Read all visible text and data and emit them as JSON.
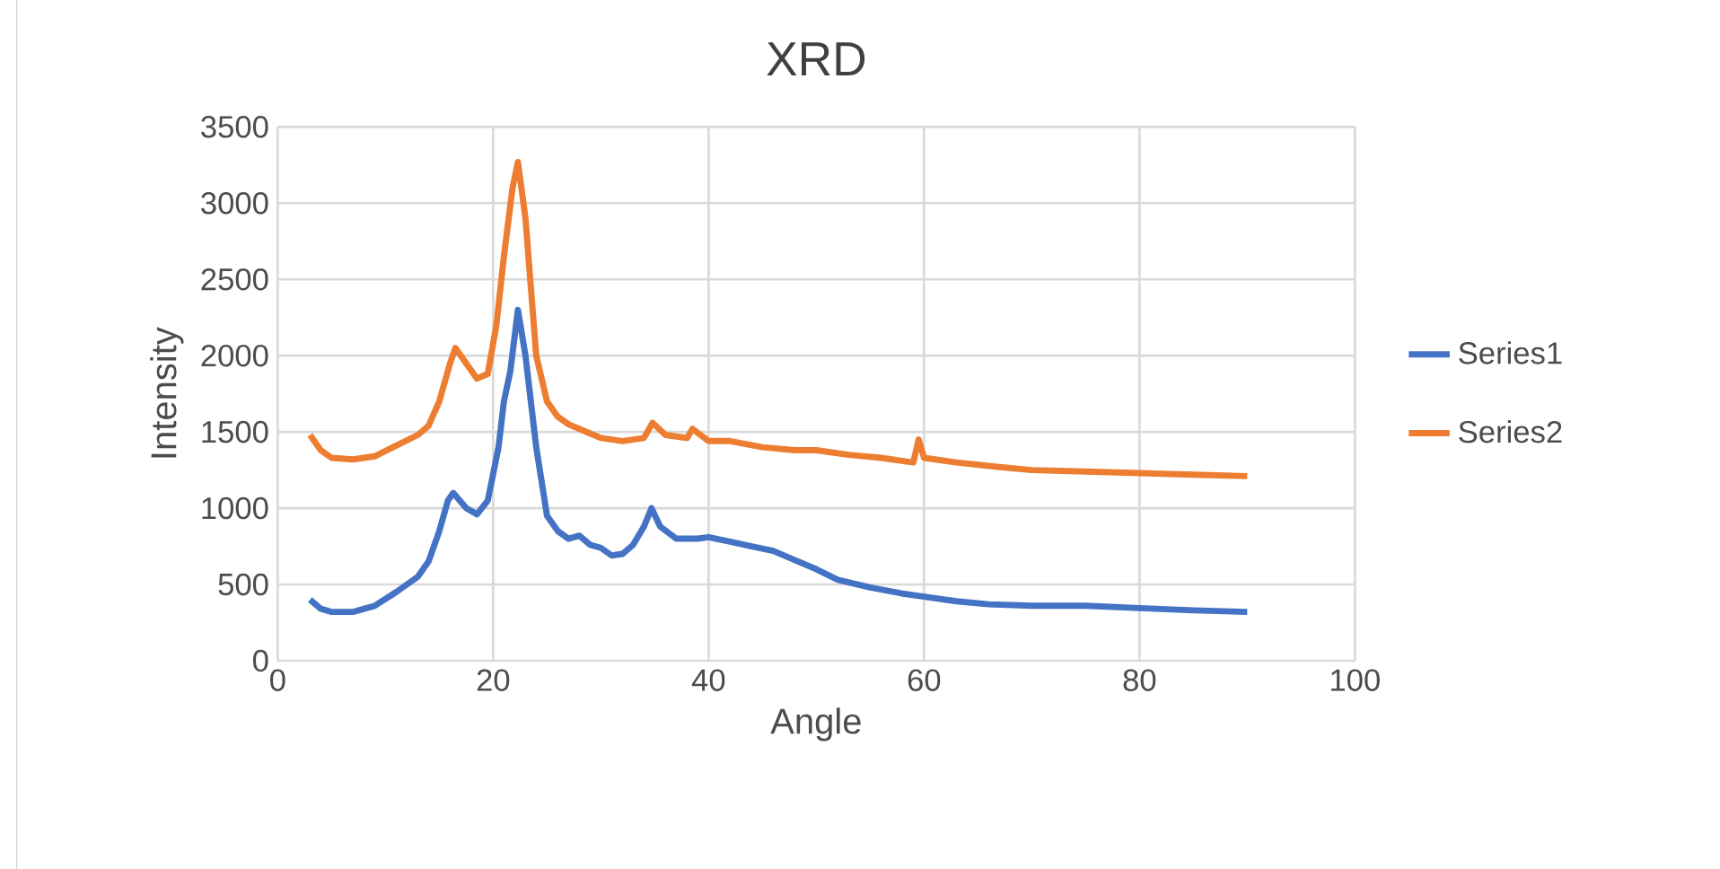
{
  "chart_data": {
    "type": "line",
    "title": "XRD",
    "xlabel": "Angle",
    "ylabel": "Intensity",
    "xlim": [
      0,
      100
    ],
    "xticks": [
      0,
      20,
      40,
      60,
      80,
      100
    ],
    "ylim": [
      0,
      3500
    ],
    "yticks": [
      0,
      500,
      1000,
      1500,
      2000,
      2500,
      3000,
      3500
    ],
    "grid": true,
    "legend": "right",
    "marker": "none",
    "line_style": "solid",
    "series": [
      {
        "name": "Series1",
        "color": "#4472c4",
        "x": [
          3,
          4,
          5,
          7,
          9,
          11,
          13,
          14,
          15,
          15.8,
          16.3,
          17.5,
          18.5,
          19.5,
          20.5,
          21,
          21.6,
          22.3,
          23,
          24,
          25,
          26,
          27,
          28,
          29,
          30,
          31,
          32,
          33,
          34,
          34.7,
          35.5,
          37,
          39,
          40,
          42,
          44,
          46,
          48,
          50,
          52,
          55,
          58,
          60,
          63,
          66,
          70,
          75,
          80,
          85,
          90
        ],
        "values": [
          400,
          340,
          320,
          320,
          360,
          450,
          550,
          650,
          850,
          1050,
          1100,
          1000,
          960,
          1050,
          1400,
          1700,
          1900,
          2300,
          2000,
          1400,
          950,
          850,
          800,
          820,
          760,
          740,
          690,
          700,
          760,
          880,
          1000,
          880,
          800,
          800,
          810,
          780,
          750,
          720,
          660,
          600,
          530,
          480,
          440,
          420,
          390,
          370,
          360,
          360,
          345,
          330,
          320
        ]
      },
      {
        "name": "Series2",
        "color": "#ed7d31",
        "x": [
          3,
          4,
          5,
          7,
          9,
          11,
          13,
          14,
          15,
          16,
          16.5,
          17.5,
          18.5,
          19.5,
          20.3,
          21,
          21.8,
          22.3,
          23,
          24,
          25,
          26,
          27,
          28,
          30,
          32,
          34,
          34.8,
          36,
          38,
          38.5,
          40,
          42,
          45,
          48,
          50,
          53,
          56,
          59,
          59.5,
          60,
          63,
          67,
          70,
          75,
          80,
          85,
          90
        ],
        "values": [
          1480,
          1380,
          1330,
          1320,
          1340,
          1410,
          1480,
          1540,
          1700,
          1950,
          2050,
          1950,
          1850,
          1880,
          2200,
          2650,
          3100,
          3270,
          2900,
          2000,
          1700,
          1600,
          1550,
          1520,
          1460,
          1440,
          1460,
          1560,
          1480,
          1460,
          1520,
          1440,
          1440,
          1400,
          1380,
          1380,
          1350,
          1330,
          1300,
          1450,
          1330,
          1300,
          1270,
          1250,
          1240,
          1230,
          1220,
          1210
        ]
      }
    ]
  }
}
